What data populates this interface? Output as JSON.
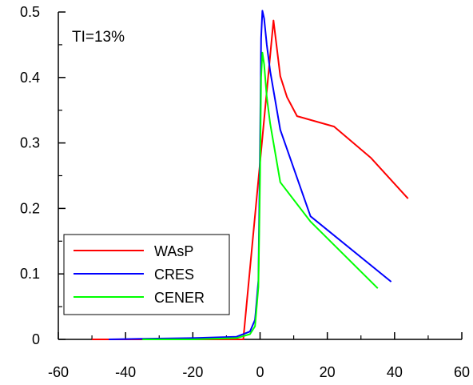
{
  "chart_data": {
    "type": "line",
    "title": "",
    "xlabel": "",
    "ylabel": "",
    "xlim": [
      -60,
      60
    ],
    "ylim": [
      0,
      0.5
    ],
    "x_ticks": [
      -60,
      -40,
      -20,
      0,
      20,
      40,
      60
    ],
    "x_tick_labels": [
      "-60",
      "-40",
      "-20",
      "0",
      "20",
      "40",
      "60"
    ],
    "y_ticks": [
      0,
      0.1,
      0.2,
      0.3,
      0.4,
      0.5
    ],
    "y_tick_labels": [
      "0",
      "0.1",
      "0.2",
      "0.3",
      "0.4",
      "0.5"
    ],
    "grid": false,
    "legend_position": "bottom-left",
    "annotation": "TI=13%",
    "series": [
      {
        "name": "WAsP",
        "color": "#ff0000",
        "x": [
          -50,
          -5,
          4,
          6,
          8,
          11,
          22,
          33,
          44
        ],
        "y": [
          0,
          0,
          0.487,
          0.402,
          0.37,
          0.341,
          0.325,
          0.277,
          0.215
        ]
      },
      {
        "name": "CRES",
        "color": "#0000ff",
        "x": [
          -45,
          -35,
          -20,
          -7,
          -3,
          -1.5,
          -0.5,
          0,
          0.3,
          0.7,
          1.2,
          2,
          3,
          6,
          15,
          39
        ],
        "y": [
          0,
          0.001,
          0.002,
          0.004,
          0.012,
          0.03,
          0.09,
          0.3,
          0.46,
          0.502,
          0.49,
          0.45,
          0.41,
          0.32,
          0.188,
          0.088
        ]
      },
      {
        "name": "CENER",
        "color": "#00ff00",
        "x": [
          -35,
          -20,
          -7,
          -3,
          -1.5,
          -0.5,
          0,
          0.3,
          0.7,
          1.2,
          2,
          3,
          6,
          15,
          35
        ],
        "y": [
          0,
          0,
          0.002,
          0.008,
          0.02,
          0.08,
          0.25,
          0.4,
          0.438,
          0.42,
          0.37,
          0.33,
          0.24,
          0.18,
          0.078
        ]
      }
    ]
  }
}
